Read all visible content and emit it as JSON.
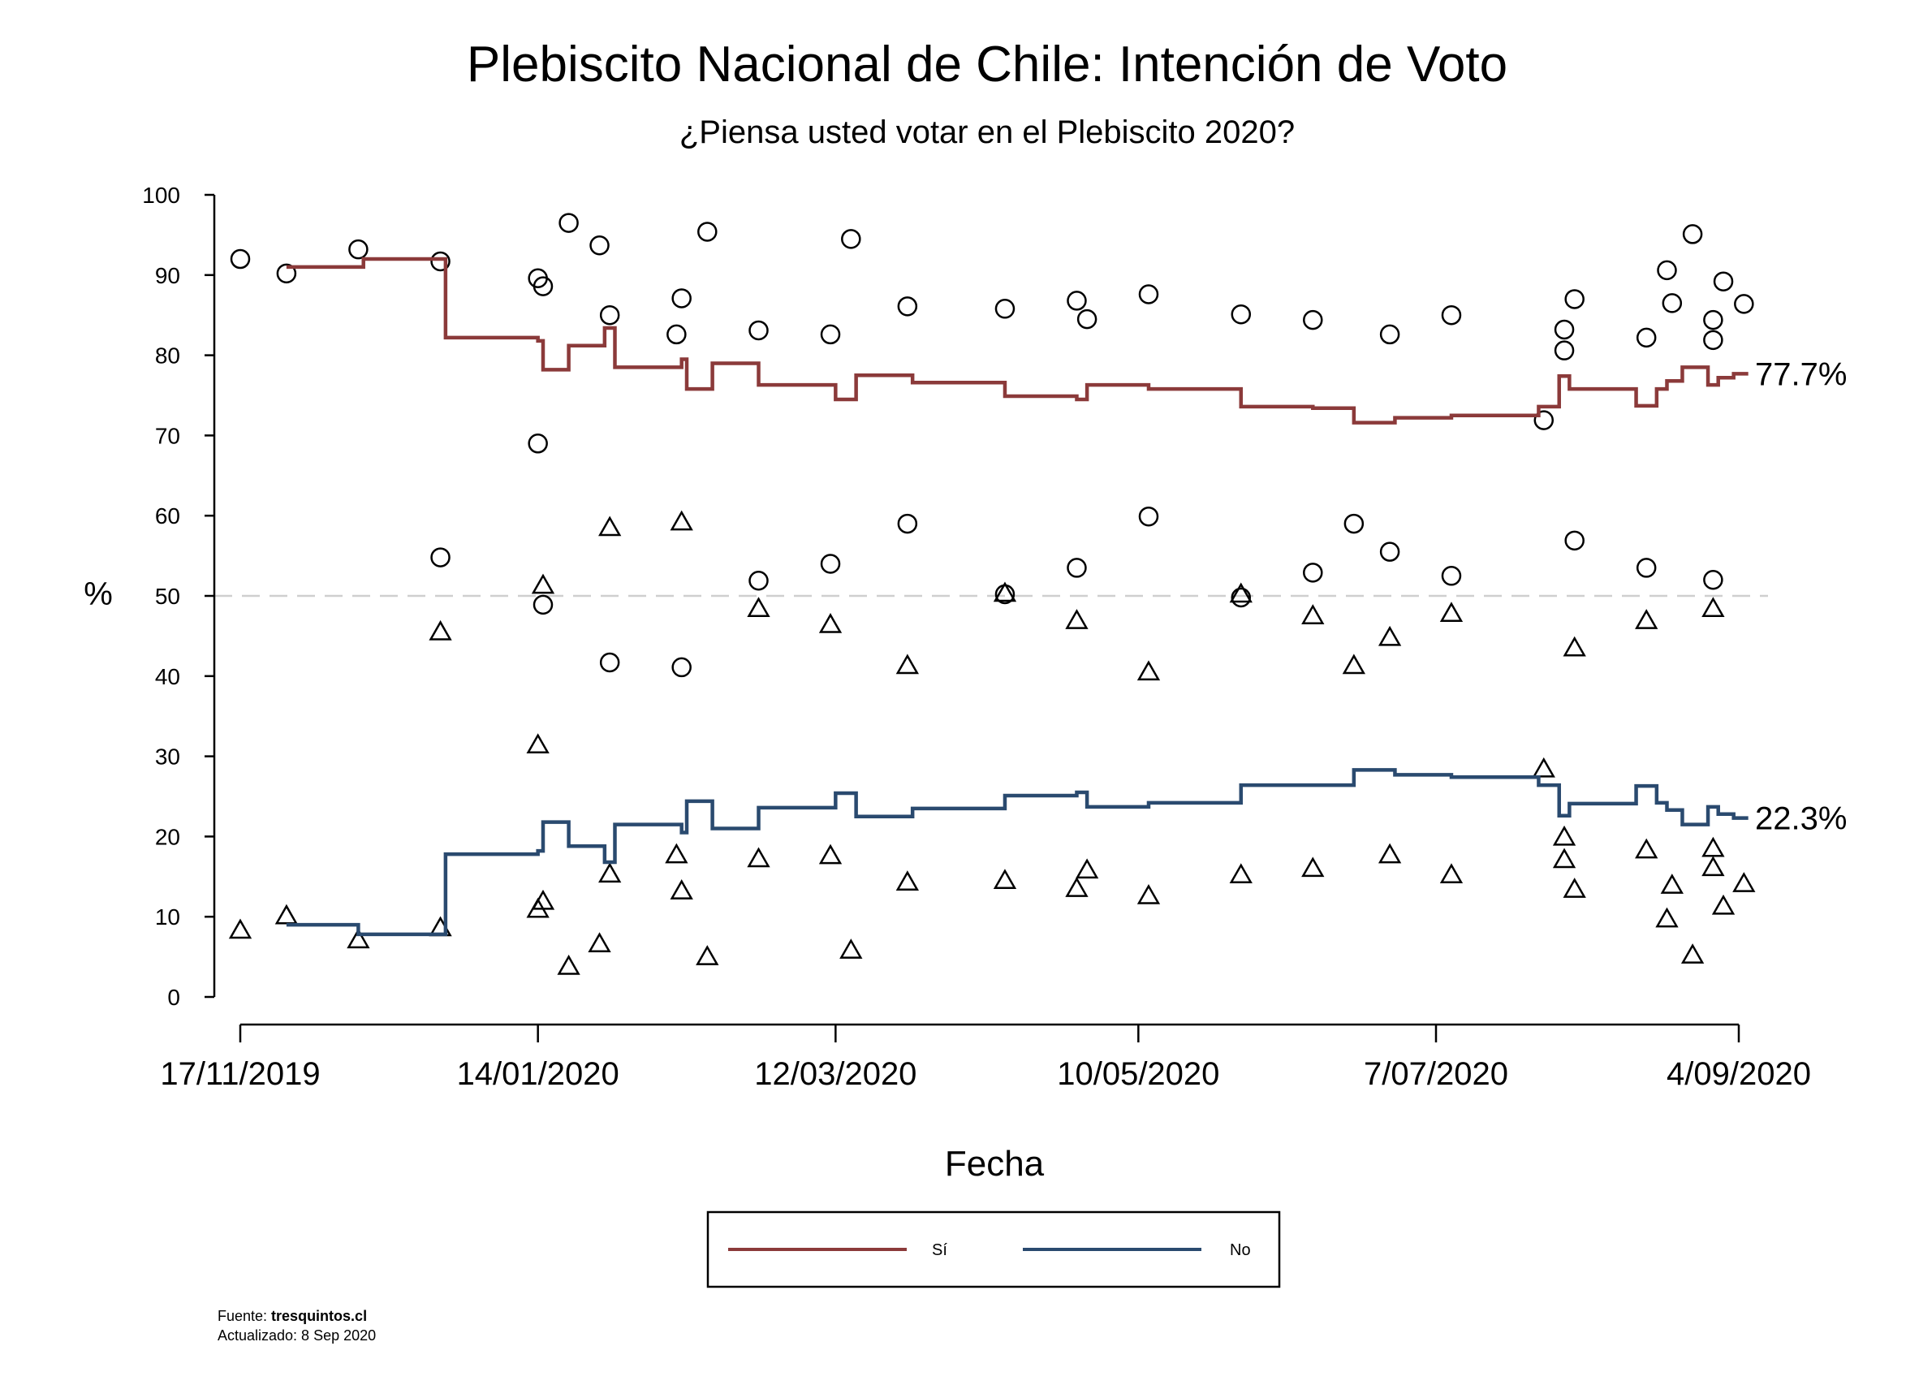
{
  "chart_data": {
    "type": "line",
    "title": "Plebiscito Nacional de Chile: Intención de Voto",
    "subtitle": "¿Piensa usted votar en el Plebiscito 2020?",
    "xlabel": "Fecha",
    "ylabel": "%",
    "ylim": [
      0,
      100
    ],
    "yticks": [
      "0",
      "10",
      "20",
      "30",
      "40",
      "50",
      "60",
      "70",
      "80",
      "90",
      "100"
    ],
    "x_range": [
      "2019-11-17",
      "2020-09-04"
    ],
    "xtick_labels": [
      "17/11/2019",
      "14/01/2020",
      "12/03/2020",
      "10/05/2020",
      "7/07/2020",
      "4/09/2020"
    ],
    "xtick_dates": [
      "2019-11-17",
      "2020-01-14",
      "2020-03-12",
      "2020-05-10",
      "2020-07-07",
      "2020-09-04"
    ],
    "reference_line": 50,
    "legend_position": "bottom",
    "series": [
      {
        "name": "Sí",
        "color": "#8b3a3a",
        "end_label": "77.7%",
        "step": [
          {
            "x": "2019-11-26",
            "y": 91
          },
          {
            "x": "2019-12-11",
            "y": 92
          },
          {
            "x": "2019-12-27",
            "y": 82.2
          },
          {
            "x": "2020-01-14",
            "y": 81.8
          },
          {
            "x": "2020-01-15",
            "y": 78.2
          },
          {
            "x": "2020-01-20",
            "y": 81.2
          },
          {
            "x": "2020-01-27",
            "y": 83.4
          },
          {
            "x": "2020-01-29",
            "y": 78.5
          },
          {
            "x": "2020-02-11",
            "y": 79.5
          },
          {
            "x": "2020-02-12",
            "y": 75.8
          },
          {
            "x": "2020-02-17",
            "y": 79
          },
          {
            "x": "2020-02-26",
            "y": 76.3
          },
          {
            "x": "2020-03-12",
            "y": 74.5
          },
          {
            "x": "2020-03-16",
            "y": 77.5
          },
          {
            "x": "2020-03-27",
            "y": 76.6
          },
          {
            "x": "2020-04-14",
            "y": 74.9
          },
          {
            "x": "2020-04-28",
            "y": 74.5
          },
          {
            "x": "2020-04-30",
            "y": 76.3
          },
          {
            "x": "2020-05-12",
            "y": 75.8
          },
          {
            "x": "2020-05-30",
            "y": 73.6
          },
          {
            "x": "2020-06-13",
            "y": 73.4
          },
          {
            "x": "2020-06-21",
            "y": 71.6
          },
          {
            "x": "2020-06-29",
            "y": 72.2
          },
          {
            "x": "2020-07-10",
            "y": 72.5
          },
          {
            "x": "2020-07-27",
            "y": 73.6
          },
          {
            "x": "2020-07-31",
            "y": 77.4
          },
          {
            "x": "2020-08-02",
            "y": 75.8
          },
          {
            "x": "2020-08-15",
            "y": 73.7
          },
          {
            "x": "2020-08-19",
            "y": 75.8
          },
          {
            "x": "2020-08-21",
            "y": 76.8
          },
          {
            "x": "2020-08-24",
            "y": 78.5
          },
          {
            "x": "2020-08-29",
            "y": 76.3
          },
          {
            "x": "2020-08-31",
            "y": 77.2
          },
          {
            "x": "2020-09-03",
            "y": 77.7
          }
        ],
        "points": [
          {
            "x": "2019-11-17",
            "y": 92
          },
          {
            "x": "2019-11-26",
            "y": 90.2
          },
          {
            "x": "2019-12-10",
            "y": 93.2
          },
          {
            "x": "2019-12-26",
            "y": 91.7
          },
          {
            "x": "2020-01-14",
            "y": 89.6
          },
          {
            "x": "2020-01-15",
            "y": 88.6
          },
          {
            "x": "2020-01-20",
            "y": 96.5
          },
          {
            "x": "2020-01-26",
            "y": 93.7
          },
          {
            "x": "2020-01-28",
            "y": 85
          },
          {
            "x": "2020-02-10",
            "y": 82.6
          },
          {
            "x": "2020-02-11",
            "y": 87.1
          },
          {
            "x": "2020-02-16",
            "y": 95.4
          },
          {
            "x": "2020-02-26",
            "y": 83.1
          },
          {
            "x": "2020-03-11",
            "y": 82.6
          },
          {
            "x": "2020-03-15",
            "y": 94.5
          },
          {
            "x": "2020-03-26",
            "y": 86.1
          },
          {
            "x": "2020-04-14",
            "y": 85.8
          },
          {
            "x": "2020-04-28",
            "y": 86.8
          },
          {
            "x": "2020-04-30",
            "y": 84.5
          },
          {
            "x": "2020-05-12",
            "y": 87.6
          },
          {
            "x": "2020-05-30",
            "y": 85.1
          },
          {
            "x": "2020-06-13",
            "y": 84.4
          },
          {
            "x": "2020-06-28",
            "y": 82.6
          },
          {
            "x": "2020-07-10",
            "y": 85
          },
          {
            "x": "2020-07-28",
            "y": 71.9
          },
          {
            "x": "2020-08-01",
            "y": 83.2
          },
          {
            "x": "2020-08-01",
            "y": 80.6
          },
          {
            "x": "2020-08-03",
            "y": 87
          },
          {
            "x": "2020-08-17",
            "y": 82.2
          },
          {
            "x": "2020-08-21",
            "y": 90.6
          },
          {
            "x": "2020-08-22",
            "y": 86.5
          },
          {
            "x": "2020-08-26",
            "y": 95.1
          },
          {
            "x": "2020-08-30",
            "y": 84.4
          },
          {
            "x": "2020-08-30",
            "y": 81.9
          },
          {
            "x": "2020-09-01",
            "y": 89.2
          },
          {
            "x": "2020-09-05",
            "y": 86.4
          },
          {
            "x": "2020-01-14",
            "y": 69
          },
          {
            "x": "2019-12-26",
            "y": 54.8
          },
          {
            "x": "2020-01-15",
            "y": 48.9
          },
          {
            "x": "2020-01-28",
            "y": 41.7
          },
          {
            "x": "2020-02-11",
            "y": 41.1
          },
          {
            "x": "2020-02-26",
            "y": 51.9
          },
          {
            "x": "2020-03-11",
            "y": 54
          },
          {
            "x": "2020-03-26",
            "y": 59
          },
          {
            "x": "2020-04-14",
            "y": 50.2
          },
          {
            "x": "2020-04-28",
            "y": 53.5
          },
          {
            "x": "2020-05-12",
            "y": 59.9
          },
          {
            "x": "2020-05-30",
            "y": 49.8
          },
          {
            "x": "2020-06-13",
            "y": 52.9
          },
          {
            "x": "2020-06-21",
            "y": 59
          },
          {
            "x": "2020-06-28",
            "y": 55.5
          },
          {
            "x": "2020-07-10",
            "y": 52.5
          },
          {
            "x": "2020-08-03",
            "y": 56.9
          },
          {
            "x": "2020-08-17",
            "y": 53.5
          },
          {
            "x": "2020-08-30",
            "y": 52
          }
        ]
      },
      {
        "name": "No",
        "color": "#2a4a6f",
        "end_label": "22.3%",
        "step": [
          {
            "x": "2019-11-26",
            "y": 9
          },
          {
            "x": "2019-12-10",
            "y": 7.8
          },
          {
            "x": "2019-12-27",
            "y": 17.8
          },
          {
            "x": "2020-01-14",
            "y": 18.2
          },
          {
            "x": "2020-01-15",
            "y": 21.8
          },
          {
            "x": "2020-01-20",
            "y": 18.8
          },
          {
            "x": "2020-01-27",
            "y": 16.8
          },
          {
            "x": "2020-01-29",
            "y": 21.5
          },
          {
            "x": "2020-02-11",
            "y": 20.5
          },
          {
            "x": "2020-02-12",
            "y": 24.4
          },
          {
            "x": "2020-02-17",
            "y": 21
          },
          {
            "x": "2020-02-26",
            "y": 23.6
          },
          {
            "x": "2020-03-12",
            "y": 25.4
          },
          {
            "x": "2020-03-16",
            "y": 22.5
          },
          {
            "x": "2020-03-27",
            "y": 23.5
          },
          {
            "x": "2020-04-14",
            "y": 25.1
          },
          {
            "x": "2020-04-28",
            "y": 25.5
          },
          {
            "x": "2020-04-30",
            "y": 23.7
          },
          {
            "x": "2020-05-12",
            "y": 24.2
          },
          {
            "x": "2020-05-30",
            "y": 26.4
          },
          {
            "x": "2020-06-21",
            "y": 28.3
          },
          {
            "x": "2020-06-29",
            "y": 27.7
          },
          {
            "x": "2020-07-10",
            "y": 27.4
          },
          {
            "x": "2020-07-27",
            "y": 26.4
          },
          {
            "x": "2020-07-31",
            "y": 22.6
          },
          {
            "x": "2020-08-02",
            "y": 24.1
          },
          {
            "x": "2020-08-15",
            "y": 26.3
          },
          {
            "x": "2020-08-19",
            "y": 24.2
          },
          {
            "x": "2020-08-21",
            "y": 23.3
          },
          {
            "x": "2020-08-24",
            "y": 21.5
          },
          {
            "x": "2020-08-29",
            "y": 23.7
          },
          {
            "x": "2020-08-31",
            "y": 22.8
          },
          {
            "x": "2020-09-03",
            "y": 22.3
          }
        ],
        "points": [
          {
            "x": "2019-11-17",
            "y": 8.2
          },
          {
            "x": "2019-11-26",
            "y": 10
          },
          {
            "x": "2019-12-10",
            "y": 7
          },
          {
            "x": "2019-12-26",
            "y": 8.5
          },
          {
            "x": "2020-01-14",
            "y": 10.8
          },
          {
            "x": "2020-01-15",
            "y": 11.8
          },
          {
            "x": "2020-01-20",
            "y": 3.7
          },
          {
            "x": "2020-01-26",
            "y": 6.5
          },
          {
            "x": "2020-01-28",
            "y": 15.2
          },
          {
            "x": "2020-02-10",
            "y": 17.6
          },
          {
            "x": "2020-02-11",
            "y": 13.1
          },
          {
            "x": "2020-02-16",
            "y": 4.9
          },
          {
            "x": "2020-02-26",
            "y": 17.1
          },
          {
            "x": "2020-03-11",
            "y": 17.5
          },
          {
            "x": "2020-03-15",
            "y": 5.7
          },
          {
            "x": "2020-03-26",
            "y": 14.2
          },
          {
            "x": "2020-04-14",
            "y": 14.4
          },
          {
            "x": "2020-04-28",
            "y": 13.4
          },
          {
            "x": "2020-04-30",
            "y": 15.7
          },
          {
            "x": "2020-05-12",
            "y": 12.5
          },
          {
            "x": "2020-05-30",
            "y": 15.1
          },
          {
            "x": "2020-06-13",
            "y": 15.9
          },
          {
            "x": "2020-06-28",
            "y": 17.6
          },
          {
            "x": "2020-07-10",
            "y": 15.1
          },
          {
            "x": "2020-07-28",
            "y": 28.3
          },
          {
            "x": "2020-08-01",
            "y": 19.8
          },
          {
            "x": "2020-08-01",
            "y": 17
          },
          {
            "x": "2020-08-03",
            "y": 13.3
          },
          {
            "x": "2020-08-17",
            "y": 18.2
          },
          {
            "x": "2020-08-21",
            "y": 9.6
          },
          {
            "x": "2020-08-22",
            "y": 13.8
          },
          {
            "x": "2020-08-26",
            "y": 5.1
          },
          {
            "x": "2020-08-30",
            "y": 16
          },
          {
            "x": "2020-08-30",
            "y": 18.4
          },
          {
            "x": "2020-09-01",
            "y": 11.2
          },
          {
            "x": "2020-09-05",
            "y": 14
          },
          {
            "x": "2020-01-14",
            "y": 31.3
          },
          {
            "x": "2019-12-26",
            "y": 45.4
          },
          {
            "x": "2020-01-15",
            "y": 51.2
          },
          {
            "x": "2020-01-28",
            "y": 58.4
          },
          {
            "x": "2020-02-11",
            "y": 59.1
          },
          {
            "x": "2020-02-26",
            "y": 48.3
          },
          {
            "x": "2020-03-11",
            "y": 46.3
          },
          {
            "x": "2020-03-26",
            "y": 41.2
          },
          {
            "x": "2020-04-14",
            "y": 50.2
          },
          {
            "x": "2020-04-28",
            "y": 46.8
          },
          {
            "x": "2020-05-12",
            "y": 40.4
          },
          {
            "x": "2020-05-30",
            "y": 50.1
          },
          {
            "x": "2020-06-13",
            "y": 47.4
          },
          {
            "x": "2020-06-21",
            "y": 41.2
          },
          {
            "x": "2020-06-28",
            "y": 44.7
          },
          {
            "x": "2020-07-10",
            "y": 47.7
          },
          {
            "x": "2020-08-03",
            "y": 43.4
          },
          {
            "x": "2020-08-17",
            "y": 46.8
          },
          {
            "x": "2020-08-30",
            "y": 48.3
          }
        ]
      }
    ]
  },
  "legend": [
    {
      "label": "Sí",
      "color": "#8b3a3a"
    },
    {
      "label": "No",
      "color": "#2a4a6f"
    }
  ],
  "footer": {
    "source_prefix": "Fuente: ",
    "source_name": "tresquintos.cl",
    "updated": "Actualizado: 8 Sep 2020"
  }
}
